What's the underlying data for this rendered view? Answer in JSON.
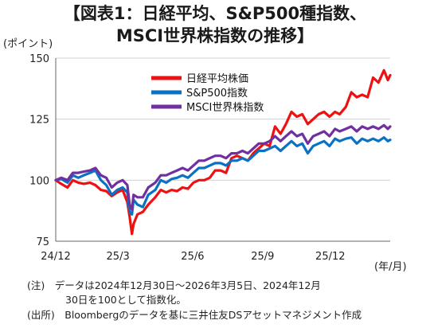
{
  "title_line1": "【図表1：日経平均、S&P500種指数、",
  "title_line2": "MSCI世界株指数の推移】",
  "y_unit": "(ポイント)",
  "x_unit": "(年/月)",
  "note_line1": "(注)　データは2024年12月30日～2026年3月5日、2024年12月",
  "note_line2": "30日を100として指数化。",
  "source_line": "(出所)　Bloombergのデータを基に三井住友DSアセットマネジメント作成",
  "chart_data": {
    "type": "line",
    "x_ticks": [
      "24/12",
      "25/3",
      "25/6",
      "25/9",
      "25/12"
    ],
    "y_ticks": [
      75,
      100,
      125,
      150
    ],
    "ylim": [
      75,
      150
    ],
    "x_start": "2024-12-30",
    "x_end": "2026-03-05",
    "grid": "horizontal",
    "legend_position": "top-right",
    "series": [
      {
        "name": "日経平均株価",
        "color": "#ee1111",
        "points": [
          [
            "2024-12-30",
            100
          ],
          [
            "2025-01-06",
            98.5
          ],
          [
            "2025-01-14",
            97
          ],
          [
            "2025-01-21",
            100
          ],
          [
            "2025-01-28",
            99
          ],
          [
            "2025-02-04",
            98.5
          ],
          [
            "2025-02-12",
            99
          ],
          [
            "2025-02-19",
            98
          ],
          [
            "2025-02-26",
            96
          ],
          [
            "2025-03-05",
            95.5
          ],
          [
            "2025-03-12",
            93.5
          ],
          [
            "2025-03-19",
            95
          ],
          [
            "2025-03-26",
            96
          ],
          [
            "2025-04-01",
            91
          ],
          [
            "2025-04-04",
            85
          ],
          [
            "2025-04-07",
            78
          ],
          [
            "2025-04-09",
            82
          ],
          [
            "2025-04-14",
            86
          ],
          [
            "2025-04-21",
            87
          ],
          [
            "2025-04-28",
            90
          ],
          [
            "2025-05-07",
            93
          ],
          [
            "2025-05-14",
            96
          ],
          [
            "2025-05-21",
            95
          ],
          [
            "2025-05-28",
            96
          ],
          [
            "2025-06-04",
            95.5
          ],
          [
            "2025-06-11",
            97
          ],
          [
            "2025-06-18",
            96.5
          ],
          [
            "2025-06-25",
            99
          ],
          [
            "2025-07-02",
            100
          ],
          [
            "2025-07-09",
            100
          ],
          [
            "2025-07-16",
            101
          ],
          [
            "2025-07-23",
            104
          ],
          [
            "2025-07-30",
            104
          ],
          [
            "2025-08-06",
            103
          ],
          [
            "2025-08-13",
            109
          ],
          [
            "2025-08-20",
            110
          ],
          [
            "2025-08-27",
            109
          ],
          [
            "2025-09-03",
            108
          ],
          [
            "2025-09-10",
            111
          ],
          [
            "2025-09-17",
            113
          ],
          [
            "2025-09-24",
            115
          ],
          [
            "2025-10-01",
            114
          ],
          [
            "2025-10-08",
            122
          ],
          [
            "2025-10-15",
            119
          ],
          [
            "2025-10-22",
            123
          ],
          [
            "2025-10-29",
            128
          ],
          [
            "2025-11-05",
            126
          ],
          [
            "2025-11-12",
            127
          ],
          [
            "2025-11-19",
            123
          ],
          [
            "2025-11-26",
            125
          ],
          [
            "2025-12-03",
            127
          ],
          [
            "2025-12-10",
            128
          ],
          [
            "2025-12-17",
            126
          ],
          [
            "2025-12-24",
            128
          ],
          [
            "2025-12-30",
            127
          ],
          [
            "2026-01-07",
            130
          ],
          [
            "2026-01-14",
            136
          ],
          [
            "2026-01-21",
            134
          ],
          [
            "2026-01-28",
            135
          ],
          [
            "2026-02-04",
            134
          ],
          [
            "2026-02-11",
            142
          ],
          [
            "2026-02-18",
            140
          ],
          [
            "2026-02-25",
            145
          ],
          [
            "2026-03-02",
            141
          ],
          [
            "2026-03-05",
            143
          ]
        ]
      },
      {
        "name": "S&P500指数",
        "color": "#0a72c4",
        "points": [
          [
            "2024-12-30",
            100
          ],
          [
            "2025-01-06",
            100.5
          ],
          [
            "2025-01-14",
            99
          ],
          [
            "2025-01-21",
            102
          ],
          [
            "2025-01-28",
            101
          ],
          [
            "2025-02-04",
            102
          ],
          [
            "2025-02-12",
            103
          ],
          [
            "2025-02-19",
            104
          ],
          [
            "2025-02-26",
            100
          ],
          [
            "2025-03-05",
            98
          ],
          [
            "2025-03-12",
            94
          ],
          [
            "2025-03-19",
            96
          ],
          [
            "2025-03-26",
            97
          ],
          [
            "2025-04-01",
            95
          ],
          [
            "2025-04-04",
            87
          ],
          [
            "2025-04-07",
            86
          ],
          [
            "2025-04-09",
            92
          ],
          [
            "2025-04-14",
            90
          ],
          [
            "2025-04-21",
            89
          ],
          [
            "2025-04-28",
            94
          ],
          [
            "2025-05-07",
            96
          ],
          [
            "2025-05-14",
            100
          ],
          [
            "2025-05-21",
            99
          ],
          [
            "2025-05-28",
            100.5
          ],
          [
            "2025-06-04",
            101
          ],
          [
            "2025-06-11",
            102
          ],
          [
            "2025-06-18",
            101
          ],
          [
            "2025-06-25",
            103
          ],
          [
            "2025-07-02",
            105
          ],
          [
            "2025-07-09",
            105
          ],
          [
            "2025-07-16",
            106
          ],
          [
            "2025-07-23",
            107
          ],
          [
            "2025-07-30",
            107
          ],
          [
            "2025-08-06",
            106
          ],
          [
            "2025-08-13",
            108
          ],
          [
            "2025-08-20",
            108
          ],
          [
            "2025-08-27",
            109
          ],
          [
            "2025-09-03",
            108
          ],
          [
            "2025-09-10",
            110
          ],
          [
            "2025-09-17",
            112
          ],
          [
            "2025-09-24",
            112
          ],
          [
            "2025-10-01",
            113
          ],
          [
            "2025-10-08",
            114
          ],
          [
            "2025-10-15",
            112
          ],
          [
            "2025-10-22",
            114
          ],
          [
            "2025-10-29",
            116
          ],
          [
            "2025-11-05",
            114
          ],
          [
            "2025-11-12",
            115
          ],
          [
            "2025-11-19",
            111
          ],
          [
            "2025-11-26",
            114
          ],
          [
            "2025-12-03",
            115
          ],
          [
            "2025-12-10",
            116
          ],
          [
            "2025-12-17",
            114
          ],
          [
            "2025-12-24",
            117
          ],
          [
            "2025-12-30",
            116
          ],
          [
            "2026-01-07",
            117
          ],
          [
            "2026-01-14",
            117.5
          ],
          [
            "2026-01-21",
            115
          ],
          [
            "2026-01-28",
            117
          ],
          [
            "2026-02-04",
            116
          ],
          [
            "2026-02-11",
            117
          ],
          [
            "2026-02-18",
            116
          ],
          [
            "2026-02-25",
            117.5
          ],
          [
            "2026-03-02",
            116
          ],
          [
            "2026-03-05",
            116.5
          ]
        ]
      },
      {
        "name": "MSCI世界株指数",
        "color": "#7030a0",
        "points": [
          [
            "2024-12-30",
            100
          ],
          [
            "2025-01-06",
            101
          ],
          [
            "2025-01-14",
            100
          ],
          [
            "2025-01-21",
            103
          ],
          [
            "2025-01-28",
            103
          ],
          [
            "2025-02-04",
            103.5
          ],
          [
            "2025-02-12",
            104
          ],
          [
            "2025-02-19",
            105
          ],
          [
            "2025-02-26",
            102
          ],
          [
            "2025-03-05",
            101
          ],
          [
            "2025-03-12",
            97
          ],
          [
            "2025-03-19",
            99
          ],
          [
            "2025-03-26",
            100
          ],
          [
            "2025-04-01",
            98
          ],
          [
            "2025-04-04",
            90
          ],
          [
            "2025-04-07",
            88
          ],
          [
            "2025-04-09",
            94
          ],
          [
            "2025-04-14",
            93
          ],
          [
            "2025-04-21",
            93
          ],
          [
            "2025-04-28",
            97
          ],
          [
            "2025-05-07",
            99
          ],
          [
            "2025-05-14",
            102
          ],
          [
            "2025-05-21",
            102
          ],
          [
            "2025-05-28",
            103
          ],
          [
            "2025-06-04",
            104
          ],
          [
            "2025-06-11",
            105
          ],
          [
            "2025-06-18",
            104
          ],
          [
            "2025-06-25",
            106
          ],
          [
            "2025-07-02",
            108
          ],
          [
            "2025-07-09",
            108
          ],
          [
            "2025-07-16",
            109
          ],
          [
            "2025-07-23",
            110
          ],
          [
            "2025-07-30",
            110
          ],
          [
            "2025-08-06",
            109
          ],
          [
            "2025-08-13",
            111
          ],
          [
            "2025-08-20",
            111
          ],
          [
            "2025-08-27",
            112
          ],
          [
            "2025-09-03",
            111
          ],
          [
            "2025-09-10",
            113
          ],
          [
            "2025-09-17",
            115
          ],
          [
            "2025-09-24",
            115
          ],
          [
            "2025-10-01",
            116
          ],
          [
            "2025-10-08",
            118
          ],
          [
            "2025-10-15",
            116
          ],
          [
            "2025-10-22",
            118
          ],
          [
            "2025-10-29",
            120
          ],
          [
            "2025-11-05",
            118
          ],
          [
            "2025-11-12",
            119
          ],
          [
            "2025-11-19",
            115
          ],
          [
            "2025-11-26",
            118
          ],
          [
            "2025-12-03",
            119
          ],
          [
            "2025-12-10",
            120
          ],
          [
            "2025-12-17",
            118
          ],
          [
            "2025-12-24",
            121
          ],
          [
            "2025-12-30",
            120
          ],
          [
            "2026-01-07",
            121
          ],
          [
            "2026-01-14",
            122
          ],
          [
            "2026-01-21",
            120
          ],
          [
            "2026-01-28",
            122
          ],
          [
            "2026-02-04",
            121
          ],
          [
            "2026-02-11",
            122
          ],
          [
            "2026-02-18",
            121
          ],
          [
            "2026-02-25",
            122.5
          ],
          [
            "2026-03-02",
            121
          ],
          [
            "2026-03-05",
            122
          ]
        ]
      }
    ]
  }
}
